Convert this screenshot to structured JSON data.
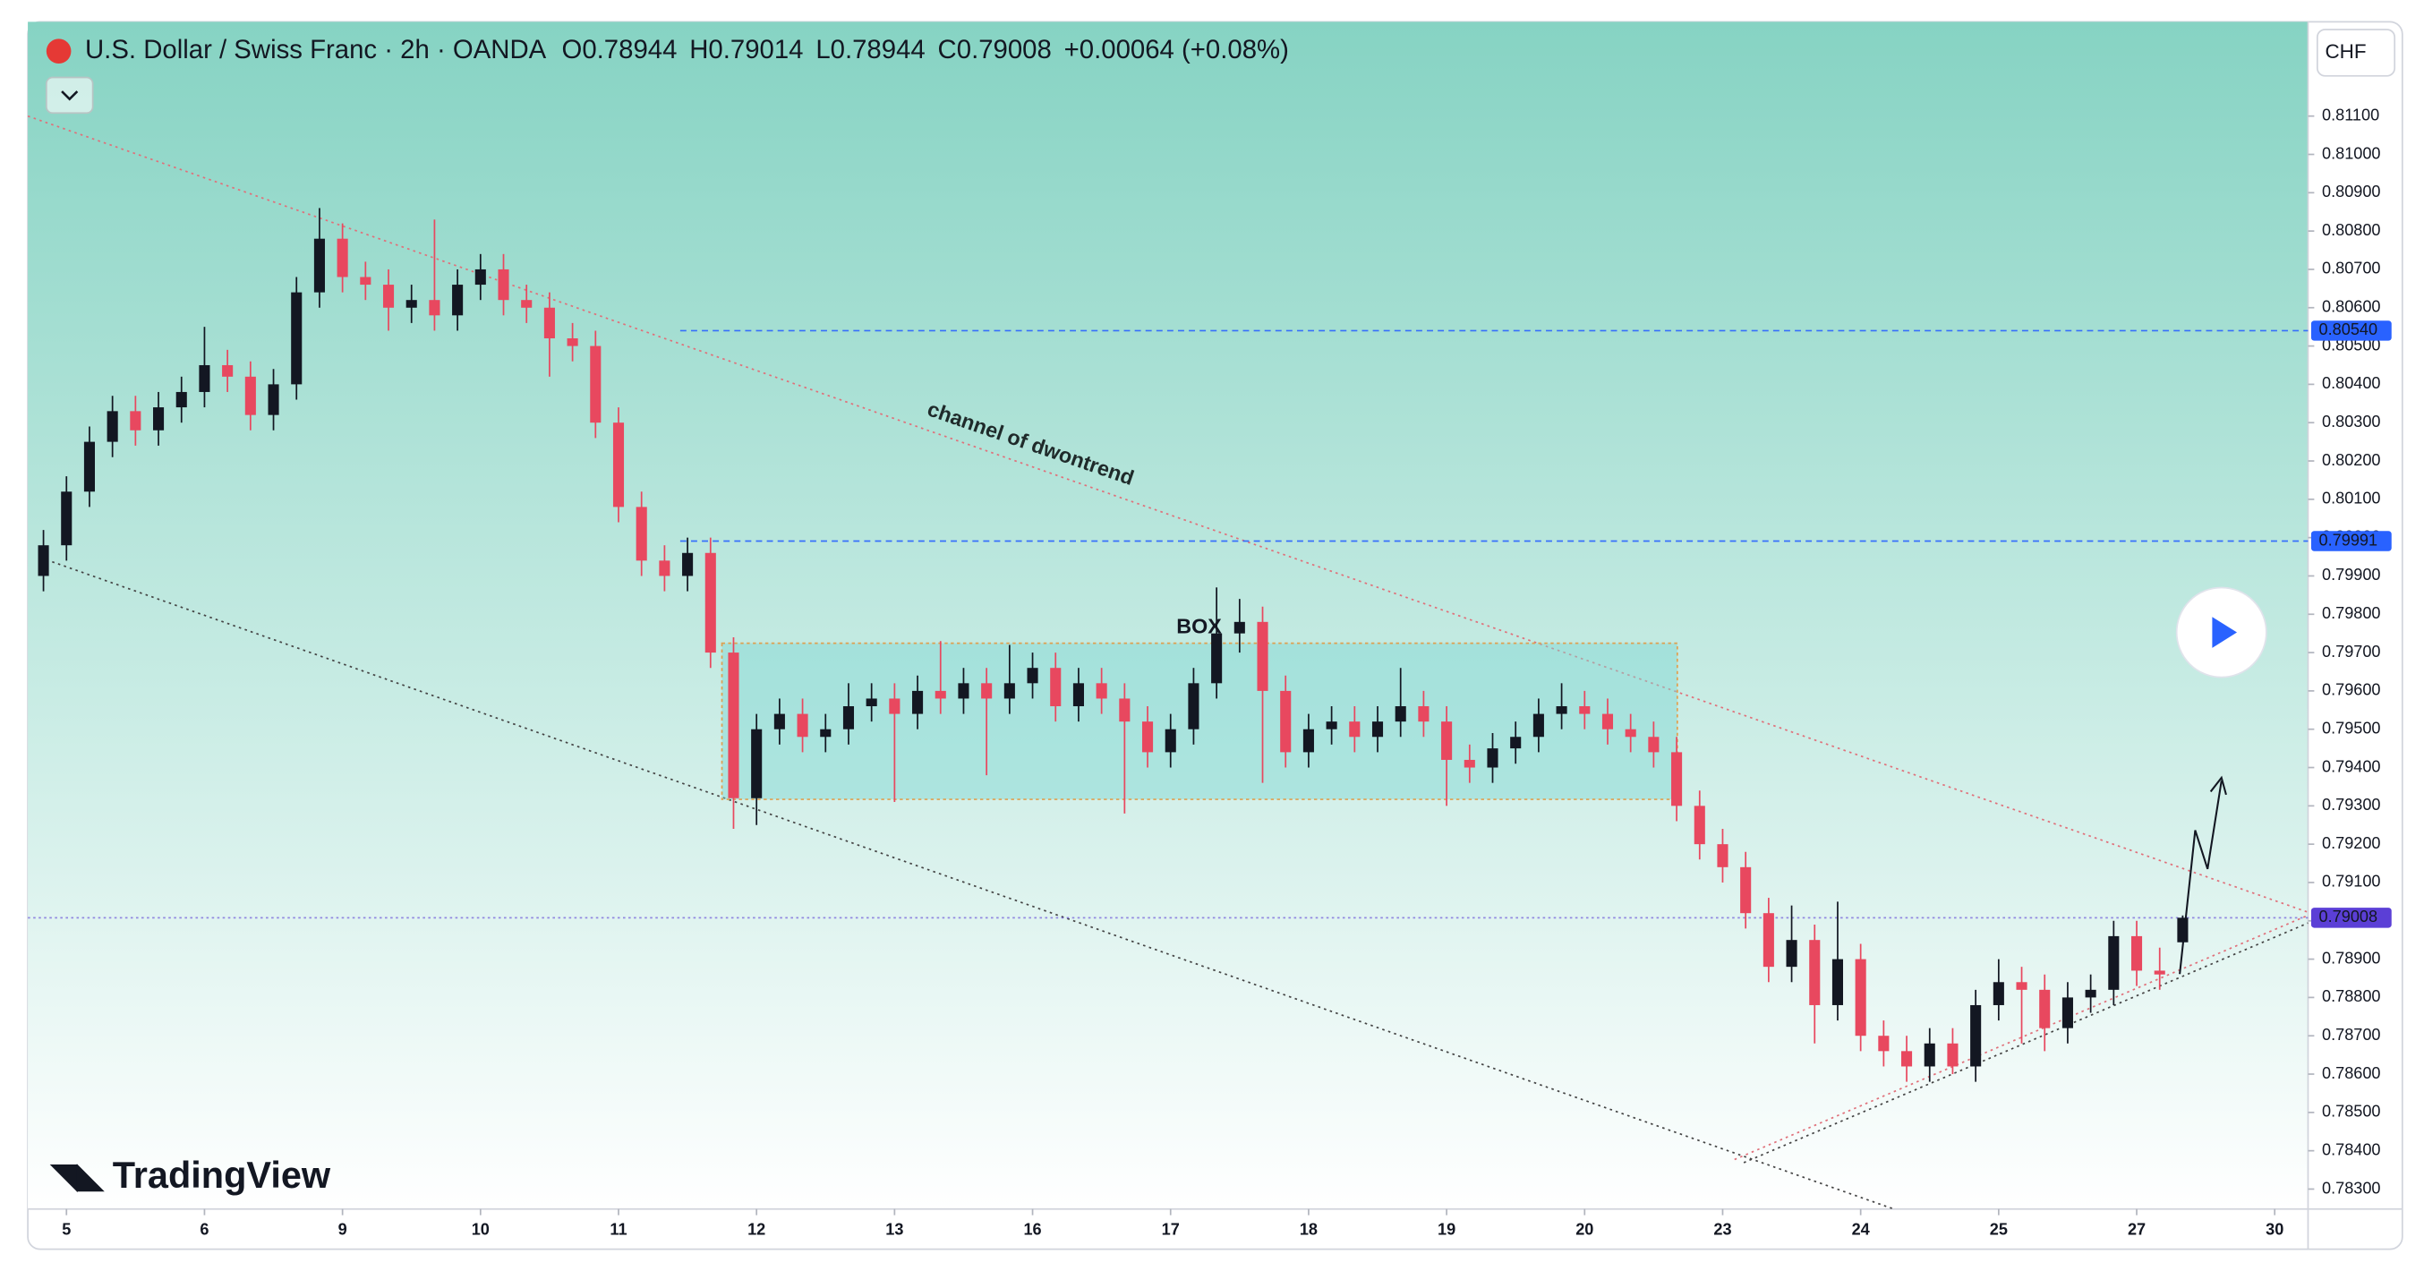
{
  "chart_data": {
    "type": "candlestick",
    "title": "U.S. Dollar / Swiss Franc · 2h · OANDA",
    "quote_labels": [
      "O",
      "H",
      "L",
      "C"
    ],
    "change": "+0.00064 (+0.08%)",
    "currency": "CHF",
    "watermark": "TradingView",
    "annotations": [
      "channel of dwontrend",
      "BOX"
    ],
    "up_color": "#131722",
    "down_color": "#e8485f",
    "x": [
      -2,
      0,
      2,
      4,
      6,
      8,
      10,
      12,
      14,
      16,
      18,
      20,
      22,
      24,
      26,
      28,
      30,
      32,
      34,
      36,
      38,
      40,
      42,
      44,
      46,
      48,
      50,
      52,
      54,
      56,
      58,
      60,
      62,
      64,
      66,
      68,
      70,
      72,
      74,
      76,
      78,
      80,
      82,
      84,
      86,
      88,
      90,
      92,
      94,
      96,
      98,
      100,
      102,
      104,
      106,
      108,
      110,
      112,
      114,
      116,
      118,
      120,
      122,
      124,
      126,
      128,
      130,
      132,
      134,
      136,
      138,
      140,
      142,
      144,
      146,
      148,
      150,
      152,
      154,
      156,
      158,
      160,
      162,
      164,
      166,
      168,
      170,
      172,
      174,
      176,
      178,
      180,
      182,
      184
    ],
    "open": [
      0.799,
      0.7998,
      0.8012,
      0.8025,
      0.8033,
      0.8028,
      0.8034,
      0.8038,
      0.8045,
      0.8042,
      0.8032,
      0.804,
      0.8064,
      0.8078,
      0.8068,
      0.8066,
      0.806,
      0.8062,
      0.8058,
      0.8066,
      0.807,
      0.8062,
      0.806,
      0.8052,
      0.805,
      0.803,
      0.8008,
      0.7994,
      0.799,
      0.7996,
      0.797,
      0.7932,
      0.795,
      0.7954,
      0.7948,
      0.795,
      0.7956,
      0.7958,
      0.7954,
      0.796,
      0.7958,
      0.7962,
      0.7958,
      0.7962,
      0.7966,
      0.7956,
      0.7962,
      0.7958,
      0.7952,
      0.7944,
      0.795,
      0.7962,
      0.7975,
      0.7978,
      0.796,
      0.7944,
      0.795,
      0.7952,
      0.7948,
      0.7952,
      0.7956,
      0.7952,
      0.7942,
      0.794,
      0.7945,
      0.7948,
      0.7954,
      0.7956,
      0.7954,
      0.795,
      0.7948,
      0.7944,
      0.793,
      0.792,
      0.7914,
      0.7902,
      0.7888,
      0.7895,
      0.7878,
      0.789,
      0.787,
      0.7866,
      0.7862,
      0.7868,
      0.7862,
      0.7878,
      0.7884,
      0.7882,
      0.7872,
      0.788,
      0.7882,
      0.7896,
      0.7887,
      0.78944
    ],
    "high": [
      0.8002,
      0.8016,
      0.8029,
      0.8037,
      0.8037,
      0.8038,
      0.8042,
      0.8055,
      0.8049,
      0.8046,
      0.8044,
      0.8068,
      0.8086,
      0.8082,
      0.8072,
      0.807,
      0.8066,
      0.8083,
      0.807,
      0.8074,
      0.8074,
      0.8066,
      0.8064,
      0.8056,
      0.8054,
      0.8034,
      0.8012,
      0.7998,
      0.8,
      0.8,
      0.7974,
      0.7954,
      0.7958,
      0.7958,
      0.7954,
      0.7962,
      0.7962,
      0.7962,
      0.7964,
      0.7973,
      0.7966,
      0.7966,
      0.7972,
      0.797,
      0.797,
      0.7966,
      0.7966,
      0.7962,
      0.7956,
      0.7954,
      0.7966,
      0.7987,
      0.7984,
      0.7982,
      0.7964,
      0.7954,
      0.7956,
      0.7956,
      0.7956,
      0.7966,
      0.796,
      0.7956,
      0.7946,
      0.7949,
      0.7952,
      0.7958,
      0.7962,
      0.796,
      0.7958,
      0.7954,
      0.7952,
      0.7948,
      0.7934,
      0.7924,
      0.7918,
      0.7906,
      0.7904,
      0.7899,
      0.7905,
      0.7894,
      0.7874,
      0.787,
      0.7872,
      0.7872,
      0.7882,
      0.789,
      0.7888,
      0.7886,
      0.7884,
      0.7886,
      0.79,
      0.79,
      0.7893,
      0.79014
    ],
    "low": [
      0.7986,
      0.7994,
      0.8008,
      0.8021,
      0.8024,
      0.8024,
      0.803,
      0.8034,
      0.8038,
      0.8028,
      0.8028,
      0.8036,
      0.806,
      0.8064,
      0.8062,
      0.8054,
      0.8056,
      0.8054,
      0.8054,
      0.8062,
      0.8058,
      0.8056,
      0.8042,
      0.8046,
      0.8026,
      0.8004,
      0.799,
      0.7986,
      0.7986,
      0.7966,
      0.7924,
      0.7925,
      0.7946,
      0.7944,
      0.7944,
      0.7946,
      0.7952,
      0.7931,
      0.795,
      0.7954,
      0.7954,
      0.7938,
      0.7954,
      0.7958,
      0.7952,
      0.7952,
      0.7954,
      0.7928,
      0.794,
      0.794,
      0.7946,
      0.7958,
      0.797,
      0.7936,
      0.794,
      0.794,
      0.7946,
      0.7944,
      0.7944,
      0.7948,
      0.7948,
      0.793,
      0.7936,
      0.7936,
      0.7941,
      0.7944,
      0.795,
      0.795,
      0.7946,
      0.7944,
      0.794,
      0.7926,
      0.7916,
      0.791,
      0.7898,
      0.7884,
      0.7884,
      0.7868,
      0.7874,
      0.7866,
      0.7862,
      0.7858,
      0.7858,
      0.786,
      0.7858,
      0.7874,
      0.7868,
      0.7866,
      0.7868,
      0.7876,
      0.7878,
      0.7883,
      0.7882,
      0.78944
    ],
    "close": [
      0.7998,
      0.8012,
      0.8025,
      0.8033,
      0.8028,
      0.8034,
      0.8038,
      0.8045,
      0.8042,
      0.8032,
      0.804,
      0.8064,
      0.8078,
      0.8068,
      0.8066,
      0.806,
      0.8062,
      0.8058,
      0.8066,
      0.807,
      0.8062,
      0.806,
      0.8052,
      0.805,
      0.803,
      0.8008,
      0.7994,
      0.799,
      0.7996,
      0.797,
      0.7932,
      0.795,
      0.7954,
      0.7948,
      0.795,
      0.7956,
      0.7958,
      0.7954,
      0.796,
      0.7958,
      0.7962,
      0.7958,
      0.7962,
      0.7966,
      0.7956,
      0.7962,
      0.7958,
      0.7952,
      0.7944,
      0.795,
      0.7962,
      0.7975,
      0.7978,
      0.796,
      0.7944,
      0.795,
      0.7952,
      0.7948,
      0.7952,
      0.7956,
      0.7952,
      0.7942,
      0.794,
      0.7945,
      0.7948,
      0.7954,
      0.7956,
      0.7954,
      0.795,
      0.7948,
      0.7944,
      0.793,
      0.792,
      0.7914,
      0.7902,
      0.7888,
      0.7895,
      0.7878,
      0.789,
      0.787,
      0.7866,
      0.7862,
      0.7868,
      0.7862,
      0.7878,
      0.7884,
      0.7882,
      0.7872,
      0.788,
      0.7882,
      0.7896,
      0.7887,
      0.7886,
      0.79008
    ],
    "xlim": [
      -3.36,
      194.9
    ],
    "xticks": [
      {
        "value": 0,
        "label": "5"
      },
      {
        "value": 12,
        "label": "6"
      },
      {
        "value": 24,
        "label": "9"
      },
      {
        "value": 36,
        "label": "10"
      },
      {
        "value": 48,
        "label": "11"
      },
      {
        "value": 60,
        "label": "12"
      },
      {
        "value": 72,
        "label": "13"
      },
      {
        "value": 84,
        "label": "16"
      },
      {
        "value": 96,
        "label": "17"
      },
      {
        "value": 108,
        "label": "18"
      },
      {
        "value": 120,
        "label": "19"
      },
      {
        "value": 132,
        "label": "20"
      },
      {
        "value": 144,
        "label": "23"
      },
      {
        "value": 156,
        "label": "24"
      },
      {
        "value": 168,
        "label": "25"
      },
      {
        "value": 180,
        "label": "27"
      },
      {
        "value": 192,
        "label": "30"
      }
    ],
    "ylim": [
      0.78248,
      0.81346
    ],
    "yticks": [
      {
        "value": 0.783,
        "label": "0.78300"
      },
      {
        "value": 0.784,
        "label": "0.78400"
      },
      {
        "value": 0.785,
        "label": "0.78500"
      },
      {
        "value": 0.786,
        "label": "0.78600"
      },
      {
        "value": 0.787,
        "label": "0.78700"
      },
      {
        "value": 0.788,
        "label": "0.78800"
      },
      {
        "value": 0.789,
        "label": "0.78900"
      },
      {
        "value": 0.79,
        "label": "0.79000"
      },
      {
        "value": 0.791,
        "label": "0.79100"
      },
      {
        "value": 0.792,
        "label": "0.79200"
      },
      {
        "value": 0.793,
        "label": "0.79300"
      },
      {
        "value": 0.794,
        "label": "0.79400"
      },
      {
        "value": 0.795,
        "label": "0.79500"
      },
      {
        "value": 0.796,
        "label": "0.79600"
      },
      {
        "value": 0.797,
        "label": "0.79700"
      },
      {
        "value": 0.798,
        "label": "0.79800"
      },
      {
        "value": 0.799,
        "label": "0.79900"
      },
      {
        "value": 0.8,
        "label": "0.80000"
      },
      {
        "value": 0.801,
        "label": "0.80100"
      },
      {
        "value": 0.802,
        "label": "0.80200"
      },
      {
        "value": 0.803,
        "label": "0.80300"
      },
      {
        "value": 0.804,
        "label": "0.80400"
      },
      {
        "value": 0.805,
        "label": "0.80500"
      },
      {
        "value": 0.806,
        "label": "0.80600"
      },
      {
        "value": 0.807,
        "label": "0.80700"
      },
      {
        "value": 0.808,
        "label": "0.80800"
      },
      {
        "value": 0.809,
        "label": "0.80900"
      },
      {
        "value": 0.81,
        "label": "0.81000"
      },
      {
        "value": 0.811,
        "label": "0.81100"
      }
    ],
    "levels": [
      {
        "value": 0.8054,
        "label": "0.80540",
        "color": "#2962ff"
      },
      {
        "value": 0.79991,
        "label": "0.79991",
        "color": "#2962ff"
      },
      {
        "value": 0.79008,
        "label": "0.79008",
        "color": "#5b3fd6"
      }
    ]
  }
}
